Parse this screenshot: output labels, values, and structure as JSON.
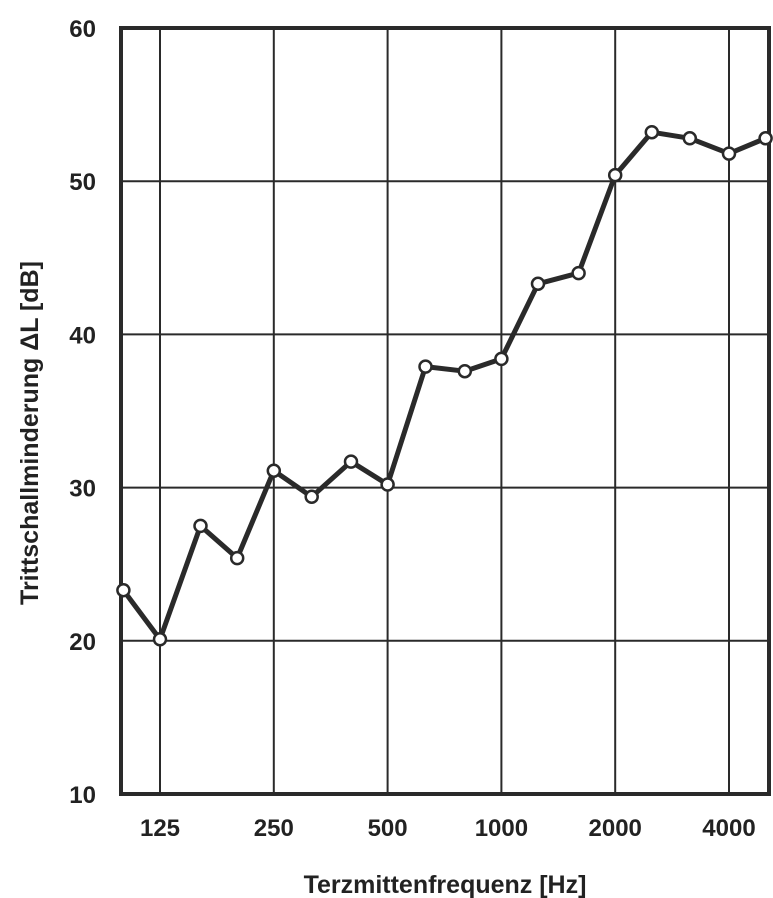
{
  "chart_data": {
    "type": "line",
    "xlabel": "Terzmittenfrequenz [Hz]",
    "ylabel": "Trittschallminderung ΔL [dB]",
    "ylim": [
      10,
      60
    ],
    "yticks": [
      10,
      20,
      30,
      40,
      50,
      60
    ],
    "xscale": "log",
    "x_tick_values": [
      125,
      250,
      500,
      1000,
      2000,
      4000
    ],
    "x_tick_labels": [
      "125",
      "250",
      "500",
      "1000",
      "2000",
      "4000"
    ],
    "grid": true,
    "marker": "open-circle",
    "series": [
      {
        "x": [
          100,
          125,
          160,
          200,
          250,
          315,
          400,
          500,
          630,
          800,
          1000,
          1250,
          1600,
          2000,
          2500,
          3150,
          4000,
          5000
        ],
        "values": [
          23.3,
          20.1,
          27.5,
          25.4,
          31.1,
          29.4,
          31.7,
          30.2,
          37.9,
          37.6,
          38.4,
          43.3,
          44.0,
          50.4,
          53.2,
          52.8,
          51.8,
          52.8
        ]
      }
    ],
    "colors": {
      "line": "#2a2a2a",
      "marker_fill": "#ffffff"
    }
  }
}
